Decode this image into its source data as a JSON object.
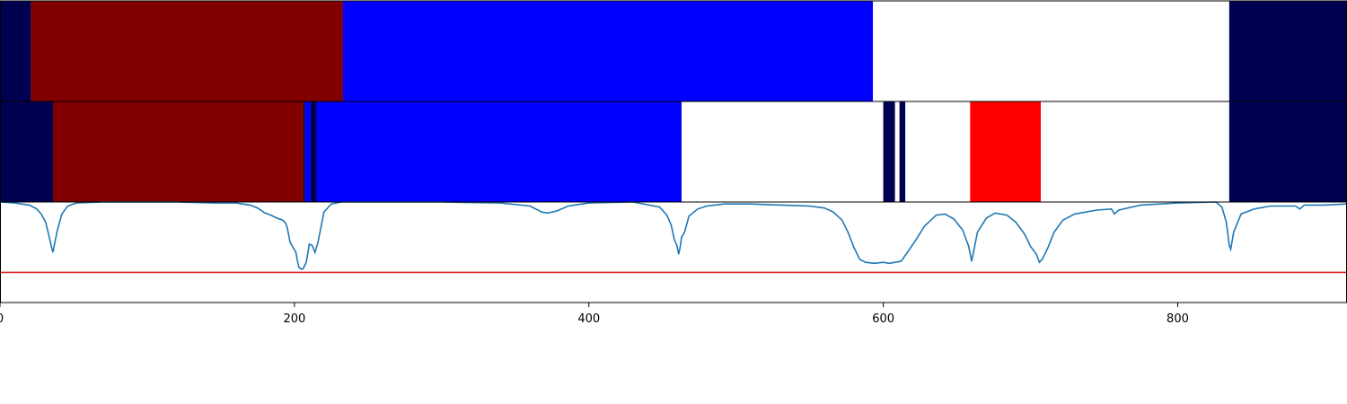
{
  "chart_data": {
    "type": "segmentation-comparison",
    "xlim": [
      0,
      915
    ],
    "x_ticks": [
      0,
      200,
      400,
      600,
      800
    ],
    "x_tick_labels": [
      "0",
      "200",
      "400",
      "600",
      "800"
    ],
    "colors": {
      "navy": "#000050",
      "maroon": "#800000",
      "blue": "#0000ff",
      "white": "#ffffff",
      "red": "#ff0000",
      "black": "#000000",
      "curve": "#1f77b4",
      "threshold": "#d62728"
    },
    "top_track": {
      "segments": [
        {
          "start": 0,
          "end": 21,
          "color": "navy"
        },
        {
          "start": 21,
          "end": 233,
          "color": "maroon"
        },
        {
          "start": 233,
          "end": 593,
          "color": "blue"
        },
        {
          "start": 593,
          "end": 835,
          "color": "white"
        },
        {
          "start": 835,
          "end": 915,
          "color": "navy"
        }
      ]
    },
    "middle_track": {
      "segments": [
        {
          "start": 0,
          "end": 36,
          "color": "navy"
        },
        {
          "start": 36,
          "end": 206,
          "color": "maroon"
        },
        {
          "start": 206,
          "end": 207,
          "color": "black"
        },
        {
          "start": 207,
          "end": 211,
          "color": "blue"
        },
        {
          "start": 211,
          "end": 215,
          "color": "navy"
        },
        {
          "start": 215,
          "end": 463,
          "color": "blue"
        },
        {
          "start": 463,
          "end": 600,
          "color": "white"
        },
        {
          "start": 600,
          "end": 608,
          "color": "navy"
        },
        {
          "start": 608,
          "end": 611,
          "color": "white"
        },
        {
          "start": 611,
          "end": 615,
          "color": "navy"
        },
        {
          "start": 615,
          "end": 659,
          "color": "white"
        },
        {
          "start": 659,
          "end": 707,
          "color": "red"
        },
        {
          "start": 707,
          "end": 835,
          "color": "white"
        },
        {
          "start": 835,
          "end": 915,
          "color": "navy"
        }
      ]
    },
    "score_curve": {
      "ylim": [
        0,
        1
      ],
      "threshold": 0.3,
      "points": [
        [
          0,
          1.0
        ],
        [
          10,
          0.99
        ],
        [
          20,
          0.97
        ],
        [
          25,
          0.93
        ],
        [
          28,
          0.88
        ],
        [
          31,
          0.8
        ],
        [
          33,
          0.68
        ],
        [
          35,
          0.55
        ],
        [
          36,
          0.5
        ],
        [
          37,
          0.58
        ],
        [
          39,
          0.72
        ],
        [
          42,
          0.88
        ],
        [
          46,
          0.96
        ],
        [
          52,
          0.99
        ],
        [
          70,
          1.0
        ],
        [
          120,
          1.0
        ],
        [
          145,
          0.99
        ],
        [
          160,
          0.99
        ],
        [
          170,
          0.97
        ],
        [
          175,
          0.94
        ],
        [
          180,
          0.89
        ],
        [
          184,
          0.87
        ],
        [
          188,
          0.84
        ],
        [
          192,
          0.82
        ],
        [
          194,
          0.79
        ],
        [
          195,
          0.75
        ],
        [
          196,
          0.68
        ],
        [
          197,
          0.6
        ],
        [
          199,
          0.55
        ],
        [
          201,
          0.5
        ],
        [
          202,
          0.42
        ],
        [
          203,
          0.35
        ],
        [
          205,
          0.33
        ],
        [
          206,
          0.34
        ],
        [
          208,
          0.4
        ],
        [
          209,
          0.48
        ],
        [
          210,
          0.58
        ],
        [
          212,
          0.57
        ],
        [
          214,
          0.5
        ],
        [
          216,
          0.6
        ],
        [
          218,
          0.75
        ],
        [
          220,
          0.9
        ],
        [
          225,
          0.98
        ],
        [
          232,
          1.0
        ],
        [
          300,
          1.0
        ],
        [
          340,
          0.99
        ],
        [
          360,
          0.96
        ],
        [
          368,
          0.9
        ],
        [
          372,
          0.89
        ],
        [
          378,
          0.91
        ],
        [
          386,
          0.96
        ],
        [
          400,
          0.99
        ],
        [
          430,
          1.0
        ],
        [
          448,
          0.95
        ],
        [
          453,
          0.87
        ],
        [
          456,
          0.77
        ],
        [
          458,
          0.63
        ],
        [
          460,
          0.56
        ],
        [
          461,
          0.48
        ],
        [
          462,
          0.55
        ],
        [
          463,
          0.65
        ],
        [
          465,
          0.7
        ],
        [
          468,
          0.86
        ],
        [
          474,
          0.93
        ],
        [
          480,
          0.96
        ],
        [
          492,
          0.98
        ],
        [
          510,
          0.98
        ],
        [
          530,
          0.97
        ],
        [
          550,
          0.96
        ],
        [
          560,
          0.94
        ],
        [
          566,
          0.9
        ],
        [
          572,
          0.82
        ],
        [
          576,
          0.7
        ],
        [
          580,
          0.55
        ],
        [
          584,
          0.43
        ],
        [
          588,
          0.4
        ],
        [
          594,
          0.39
        ],
        [
          600,
          0.4
        ],
        [
          604,
          0.39
        ],
        [
          608,
          0.4
        ],
        [
          612,
          0.41
        ],
        [
          616,
          0.49
        ],
        [
          622,
          0.62
        ],
        [
          628,
          0.76
        ],
        [
          636,
          0.87
        ],
        [
          642,
          0.88
        ],
        [
          648,
          0.83
        ],
        [
          654,
          0.72
        ],
        [
          658,
          0.56
        ],
        [
          660,
          0.41
        ],
        [
          661,
          0.48
        ],
        [
          664,
          0.7
        ],
        [
          670,
          0.84
        ],
        [
          676,
          0.89
        ],
        [
          684,
          0.87
        ],
        [
          690,
          0.8
        ],
        [
          696,
          0.68
        ],
        [
          700,
          0.56
        ],
        [
          704,
          0.48
        ],
        [
          706,
          0.4
        ],
        [
          708,
          0.43
        ],
        [
          712,
          0.55
        ],
        [
          716,
          0.7
        ],
        [
          722,
          0.82
        ],
        [
          730,
          0.88
        ],
        [
          745,
          0.92
        ],
        [
          755,
          0.93
        ],
        [
          757,
          0.88
        ],
        [
          760,
          0.92
        ],
        [
          775,
          0.97
        ],
        [
          800,
          0.99
        ],
        [
          826,
          1.0
        ],
        [
          830,
          0.95
        ],
        [
          833,
          0.8
        ],
        [
          835,
          0.57
        ],
        [
          836,
          0.53
        ],
        [
          838,
          0.7
        ],
        [
          843,
          0.88
        ],
        [
          852,
          0.93
        ],
        [
          863,
          0.96
        ],
        [
          880,
          0.96
        ],
        [
          883,
          0.93
        ],
        [
          886,
          0.97
        ],
        [
          900,
          0.97
        ],
        [
          915,
          0.98
        ]
      ]
    }
  }
}
